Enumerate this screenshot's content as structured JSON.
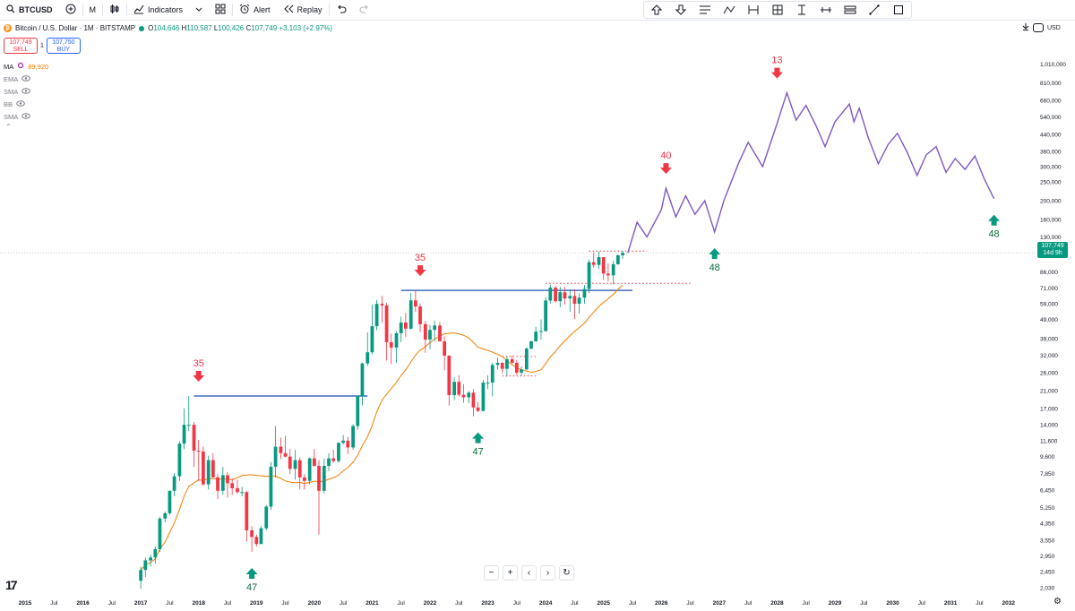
{
  "toolbar": {
    "symbol": "BTCUSD",
    "interval": "M",
    "indicators_label": "Indicators",
    "alert_label": "Alert",
    "replay_label": "Replay"
  },
  "drawing_tools": [
    "arrow-up-icon",
    "arrow-down-icon",
    "text-lines-icon",
    "path-icon",
    "bars-pattern-icon",
    "grid-frame-icon",
    "measure-icon",
    "horizontal-ray-icon",
    "parallel-lines-icon",
    "trend-line-icon",
    "rectangle-icon"
  ],
  "legend": {
    "name": "Bitcoin / U.S. Dollar · 1M · BITSTAMP",
    "open_label": "O",
    "open": "104,646",
    "high_label": "H",
    "high": "110,587",
    "low_label": "L",
    "low": "100,426",
    "close_label": "C",
    "close": "107,749",
    "change": "+3,103 (+2.97%)"
  },
  "trade": {
    "sell_price": "107,749",
    "sell_label": "SELL",
    "spread": "1",
    "buy_price": "107,750",
    "buy_label": "BUY"
  },
  "indicators": [
    {
      "name": "MA",
      "value": "89,920"
    },
    {
      "name": "EMA"
    },
    {
      "name": "SMA"
    },
    {
      "name": "BB"
    },
    {
      "name": "SMA"
    }
  ],
  "price_axis": {
    "currency": "USD",
    "current_price": "107,749",
    "countdown": "14d 9h"
  },
  "colors": {
    "up": "#089981",
    "down": "#f23645",
    "ma": "#f57c00",
    "projection": "#7e57c2",
    "level": "#1e4fae",
    "dotted": "#f23645"
  },
  "chart_data": {
    "type": "candlestick",
    "title": "Bitcoin / U.S. Dollar · 1M · BITSTAMP",
    "scale": "log",
    "ylim": [
      1900,
      1300000
    ],
    "xlim": [
      2015.0,
      2032.5
    ],
    "y_ticks": [
      1010000,
      810000,
      660000,
      540000,
      440000,
      360000,
      300000,
      250000,
      200000,
      160000,
      130000,
      107749,
      86000,
      71000,
      59000,
      49000,
      39000,
      32000,
      26000,
      21000,
      17000,
      14000,
      11600,
      9600,
      7850,
      6450,
      5250,
      4350,
      3550,
      2950,
      2450,
      2030
    ],
    "y_tick_labels": [
      "1,010,000",
      "810,000",
      "660,000",
      "540,000",
      "440,000",
      "360,000",
      "300,000",
      "250,000",
      "200,000",
      "160,000",
      "130,000",
      "",
      "86,000",
      "71,000",
      "59,000",
      "49,000",
      "39,000",
      "32,000",
      "26,000",
      "21,000",
      "17,000",
      "14,000",
      "11,600",
      "9,600",
      "7,850",
      "6,450",
      "5,250",
      "4,350",
      "3,550",
      "2,950",
      "2,450",
      "2,030"
    ],
    "x_ticks": [
      2015.0,
      2015.5,
      2016.0,
      2016.5,
      2017.0,
      2017.5,
      2018.0,
      2018.5,
      2019.0,
      2019.5,
      2020.0,
      2020.5,
      2021.0,
      2021.5,
      2022.0,
      2022.5,
      2023.0,
      2023.5,
      2024.0,
      2024.5,
      2025.0,
      2025.5,
      2026.0,
      2026.5,
      2027.0,
      2027.5,
      2028.0,
      2028.5,
      2029.0,
      2029.5,
      2030.0,
      2030.5,
      2031.0,
      2031.5,
      2032.0
    ],
    "x_tick_labels": [
      "2015",
      "Jul",
      "2016",
      "Jul",
      "2017",
      "Jul",
      "2018",
      "Jul",
      "2019",
      "Jul",
      "2020",
      "Jul",
      "2021",
      "Jul",
      "2022",
      "Jul",
      "2023",
      "Jul",
      "2024",
      "Jul",
      "2025",
      "Jul",
      "2026",
      "Jul",
      "2027",
      "Jul",
      "2028",
      "Jul",
      "2029",
      "Jul",
      "2030",
      "Jul",
      "2031",
      "Jul",
      "2032"
    ],
    "candles": [
      [
        2017.0,
        2200,
        2600,
        2000,
        2500
      ],
      [
        2017.08,
        2500,
        2900,
        2300,
        2800
      ],
      [
        2017.17,
        2800,
        3000,
        2600,
        2900
      ],
      [
        2017.25,
        2900,
        3300,
        2700,
        3200
      ],
      [
        2017.33,
        3200,
        4700,
        3100,
        4600
      ],
      [
        2017.42,
        4600,
        5000,
        4400,
        4900
      ],
      [
        2017.5,
        4900,
        6400,
        4800,
        6400
      ],
      [
        2017.58,
        6400,
        7900,
        6000,
        7600
      ],
      [
        2017.67,
        7600,
        11500,
        7200,
        11200
      ],
      [
        2017.75,
        11200,
        17000,
        10500,
        14000
      ],
      [
        2017.83,
        14000,
        19700,
        13000,
        14000
      ],
      [
        2017.92,
        14000,
        14500,
        8500,
        10300
      ],
      [
        2018.0,
        10300,
        11700,
        7200,
        10200
      ],
      [
        2018.08,
        10200,
        10800,
        6800,
        6900
      ],
      [
        2018.17,
        6900,
        9700,
        6500,
        9200
      ],
      [
        2018.25,
        9200,
        10000,
        7500,
        7500
      ],
      [
        2018.33,
        7500,
        7800,
        5800,
        6400
      ],
      [
        2018.42,
        6400,
        8500,
        6100,
        7700
      ],
      [
        2018.5,
        7700,
        8000,
        5900,
        7000
      ],
      [
        2018.58,
        7000,
        7400,
        6100,
        6600
      ],
      [
        2018.67,
        6600,
        7300,
        6200,
        6300
      ],
      [
        2018.75,
        6300,
        6700,
        6000,
        6300
      ],
      [
        2018.83,
        6300,
        6400,
        3500,
        4000
      ],
      [
        2018.92,
        4000,
        4200,
        3100,
        3700
      ],
      [
        2019.0,
        3700,
        3800,
        3300,
        3400
      ],
      [
        2019.08,
        3400,
        4200,
        3400,
        4100
      ],
      [
        2019.17,
        4100,
        5400,
        4000,
        5300
      ],
      [
        2019.25,
        5300,
        9000,
        5100,
        8500
      ],
      [
        2019.33,
        8500,
        13800,
        7500,
        10800
      ],
      [
        2019.42,
        10800,
        12000,
        9300,
        10000
      ],
      [
        2019.5,
        10000,
        12300,
        9500,
        9600
      ],
      [
        2019.58,
        9600,
        10500,
        7800,
        8300
      ],
      [
        2019.67,
        8300,
        10400,
        7300,
        9200
      ],
      [
        2019.75,
        9200,
        9500,
        6500,
        7500
      ],
      [
        2019.83,
        7500,
        7800,
        6500,
        7200
      ],
      [
        2019.92,
        7200,
        9500,
        6900,
        9400
      ],
      [
        2020.0,
        9400,
        10500,
        8500,
        8600
      ],
      [
        2020.08,
        8600,
        9200,
        3800,
        6400
      ],
      [
        2020.17,
        6400,
        9400,
        6200,
        8600
      ],
      [
        2020.25,
        8600,
        10000,
        8100,
        9400
      ],
      [
        2020.33,
        9400,
        10400,
        8900,
        9100
      ],
      [
        2020.42,
        9100,
        11400,
        8900,
        11300
      ],
      [
        2020.5,
        11300,
        12400,
        11100,
        11600
      ],
      [
        2020.58,
        11600,
        12100,
        9900,
        10700
      ],
      [
        2020.67,
        10700,
        14100,
        10400,
        13800
      ],
      [
        2020.75,
        13800,
        19800,
        13200,
        19700
      ],
      [
        2020.83,
        19700,
        29300,
        17600,
        29000
      ],
      [
        2020.92,
        29000,
        41900,
        28100,
        33100
      ],
      [
        2021.0,
        33100,
        58300,
        32300,
        45100
      ],
      [
        2021.08,
        45100,
        61700,
        43000,
        58800
      ],
      [
        2021.17,
        58800,
        64800,
        47000,
        57700
      ],
      [
        2021.25,
        57700,
        59500,
        30000,
        37300
      ],
      [
        2021.33,
        37300,
        41300,
        28800,
        35000
      ],
      [
        2021.42,
        35000,
        42300,
        29300,
        41500
      ],
      [
        2021.5,
        41500,
        50500,
        37300,
        47100
      ],
      [
        2021.58,
        47100,
        52900,
        39600,
        43800
      ],
      [
        2021.67,
        43800,
        66900,
        43300,
        61300
      ],
      [
        2021.75,
        61300,
        69000,
        53500,
        57000
      ],
      [
        2021.83,
        57000,
        59100,
        42100,
        46200
      ],
      [
        2021.92,
        46200,
        48000,
        32900,
        38500
      ],
      [
        2022.0,
        38500,
        45800,
        34300,
        43200
      ],
      [
        2022.08,
        43200,
        48200,
        37500,
        45500
      ],
      [
        2022.17,
        45500,
        47400,
        37600,
        37700
      ],
      [
        2022.25,
        37700,
        40000,
        26700,
        31800
      ],
      [
        2022.33,
        31800,
        31900,
        17600,
        19900
      ],
      [
        2022.42,
        19900,
        24600,
        18800,
        23300
      ],
      [
        2022.5,
        23300,
        25200,
        19600,
        20000
      ],
      [
        2022.58,
        20000,
        22700,
        18200,
        19400
      ],
      [
        2022.67,
        19400,
        20900,
        18100,
        20500
      ],
      [
        2022.75,
        20500,
        21400,
        15500,
        17200
      ],
      [
        2022.83,
        17200,
        18400,
        16300,
        16500
      ],
      [
        2022.92,
        16500,
        23900,
        16500,
        23100
      ],
      [
        2023.0,
        23100,
        25200,
        21400,
        23100
      ],
      [
        2023.08,
        23100,
        29200,
        19600,
        28500
      ],
      [
        2023.17,
        28500,
        31000,
        26900,
        29200
      ],
      [
        2023.25,
        29200,
        29400,
        25800,
        27200
      ],
      [
        2023.33,
        27200,
        31400,
        24800,
        30500
      ],
      [
        2023.42,
        30500,
        31800,
        28900,
        29200
      ],
      [
        2023.5,
        29200,
        30200,
        25300,
        26000
      ],
      [
        2023.58,
        26000,
        28000,
        24900,
        27000
      ],
      [
        2023.67,
        27000,
        35200,
        26900,
        34600
      ],
      [
        2023.75,
        34600,
        38000,
        34100,
        37700
      ],
      [
        2023.83,
        37700,
        44700,
        37600,
        42300
      ],
      [
        2023.92,
        42300,
        48900,
        38500,
        42600
      ],
      [
        2024.0,
        42600,
        63900,
        42200,
        61200
      ],
      [
        2024.08,
        61200,
        73800,
        59000,
        71300
      ],
      [
        2024.17,
        71300,
        72700,
        59600,
        60700
      ],
      [
        2024.25,
        60700,
        71900,
        56500,
        67500
      ],
      [
        2024.33,
        67500,
        71900,
        58400,
        62700
      ],
      [
        2024.42,
        62700,
        70000,
        53500,
        64600
      ],
      [
        2024.5,
        64600,
        70000,
        49100,
        58900
      ],
      [
        2024.58,
        58900,
        66500,
        52500,
        63300
      ],
      [
        2024.67,
        63300,
        73600,
        58900,
        70200
      ],
      [
        2024.75,
        70200,
        99500,
        66800,
        96400
      ],
      [
        2024.83,
        96400,
        108300,
        90500,
        93400
      ],
      [
        2024.92,
        93400,
        109400,
        89200,
        102400
      ],
      [
        2025.0,
        102400,
        102400,
        78200,
        84300
      ],
      [
        2025.08,
        84300,
        95000,
        76600,
        82500
      ],
      [
        2025.17,
        82500,
        97900,
        74400,
        94200
      ],
      [
        2025.25,
        94200,
        105700,
        93300,
        104600
      ],
      [
        2025.33,
        104646,
        110587,
        100426,
        107749
      ]
    ],
    "ma_period": 20,
    "ma_value": 89920,
    "projection": [
      [
        2025.42,
        107749
      ],
      [
        2025.58,
        155000
      ],
      [
        2025.75,
        130000
      ],
      [
        2026.0,
        180000
      ],
      [
        2026.08,
        232000
      ],
      [
        2026.25,
        165000
      ],
      [
        2026.42,
        212000
      ],
      [
        2026.58,
        170000
      ],
      [
        2026.75,
        200000
      ],
      [
        2026.92,
        138000
      ],
      [
        2027.08,
        200000
      ],
      [
        2027.33,
        310000
      ],
      [
        2027.5,
        400000
      ],
      [
        2027.75,
        300000
      ],
      [
        2028.0,
        500000
      ],
      [
        2028.17,
        720000
      ],
      [
        2028.33,
        520000
      ],
      [
        2028.5,
        620000
      ],
      [
        2028.67,
        490000
      ],
      [
        2028.83,
        380000
      ],
      [
        2029.0,
        510000
      ],
      [
        2029.25,
        630000
      ],
      [
        2029.33,
        510000
      ],
      [
        2029.42,
        600000
      ],
      [
        2029.58,
        420000
      ],
      [
        2029.75,
        310000
      ],
      [
        2029.92,
        390000
      ],
      [
        2030.08,
        445000
      ],
      [
        2030.25,
        355000
      ],
      [
        2030.42,
        270000
      ],
      [
        2030.58,
        345000
      ],
      [
        2030.75,
        380000
      ],
      [
        2030.92,
        280000
      ],
      [
        2031.08,
        330000
      ],
      [
        2031.25,
        290000
      ],
      [
        2031.42,
        340000
      ],
      [
        2031.58,
        260000
      ],
      [
        2031.75,
        205000
      ]
    ],
    "levels": [
      {
        "y": 19700,
        "x0": 2017.92,
        "x1": 2020.92,
        "style": "solid"
      },
      {
        "y": 69000,
        "x0": 2021.5,
        "x1": 2025.5,
        "style": "solid"
      },
      {
        "y": 75000,
        "x0": 2024.0,
        "x1": 2026.5,
        "style": "dotted"
      },
      {
        "y": 110000,
        "x0": 2024.75,
        "x1": 2025.75,
        "style": "dotted"
      },
      {
        "y": 31500,
        "x0": 2023.25,
        "x1": 2023.83,
        "style": "dotted"
      },
      {
        "y": 25000,
        "x0": 2023.25,
        "x1": 2023.83,
        "style": "dotted"
      }
    ],
    "annotations": [
      {
        "text": "35",
        "x": 2018.0,
        "y": 19700,
        "dir": "down",
        "color": "#f23645"
      },
      {
        "text": "47",
        "x": 2018.92,
        "y": 3100,
        "dir": "up",
        "color": "#089981"
      },
      {
        "text": "35",
        "x": 2021.83,
        "y": 69000,
        "dir": "down",
        "color": "#f23645"
      },
      {
        "text": "47",
        "x": 2022.83,
        "y": 15500,
        "dir": "up",
        "color": "#089981"
      },
      {
        "text": "40",
        "x": 2026.08,
        "y": 232000,
        "dir": "down",
        "color": "#f23645"
      },
      {
        "text": "48",
        "x": 2026.92,
        "y": 138000,
        "dir": "up",
        "color": "#089981"
      },
      {
        "text": "13",
        "x": 2028.0,
        "y": 720000,
        "dir": "down",
        "color": "#f23645"
      },
      {
        "text": "48",
        "x": 2031.75,
        "y": 205000,
        "dir": "up",
        "color": "#089981"
      }
    ]
  }
}
